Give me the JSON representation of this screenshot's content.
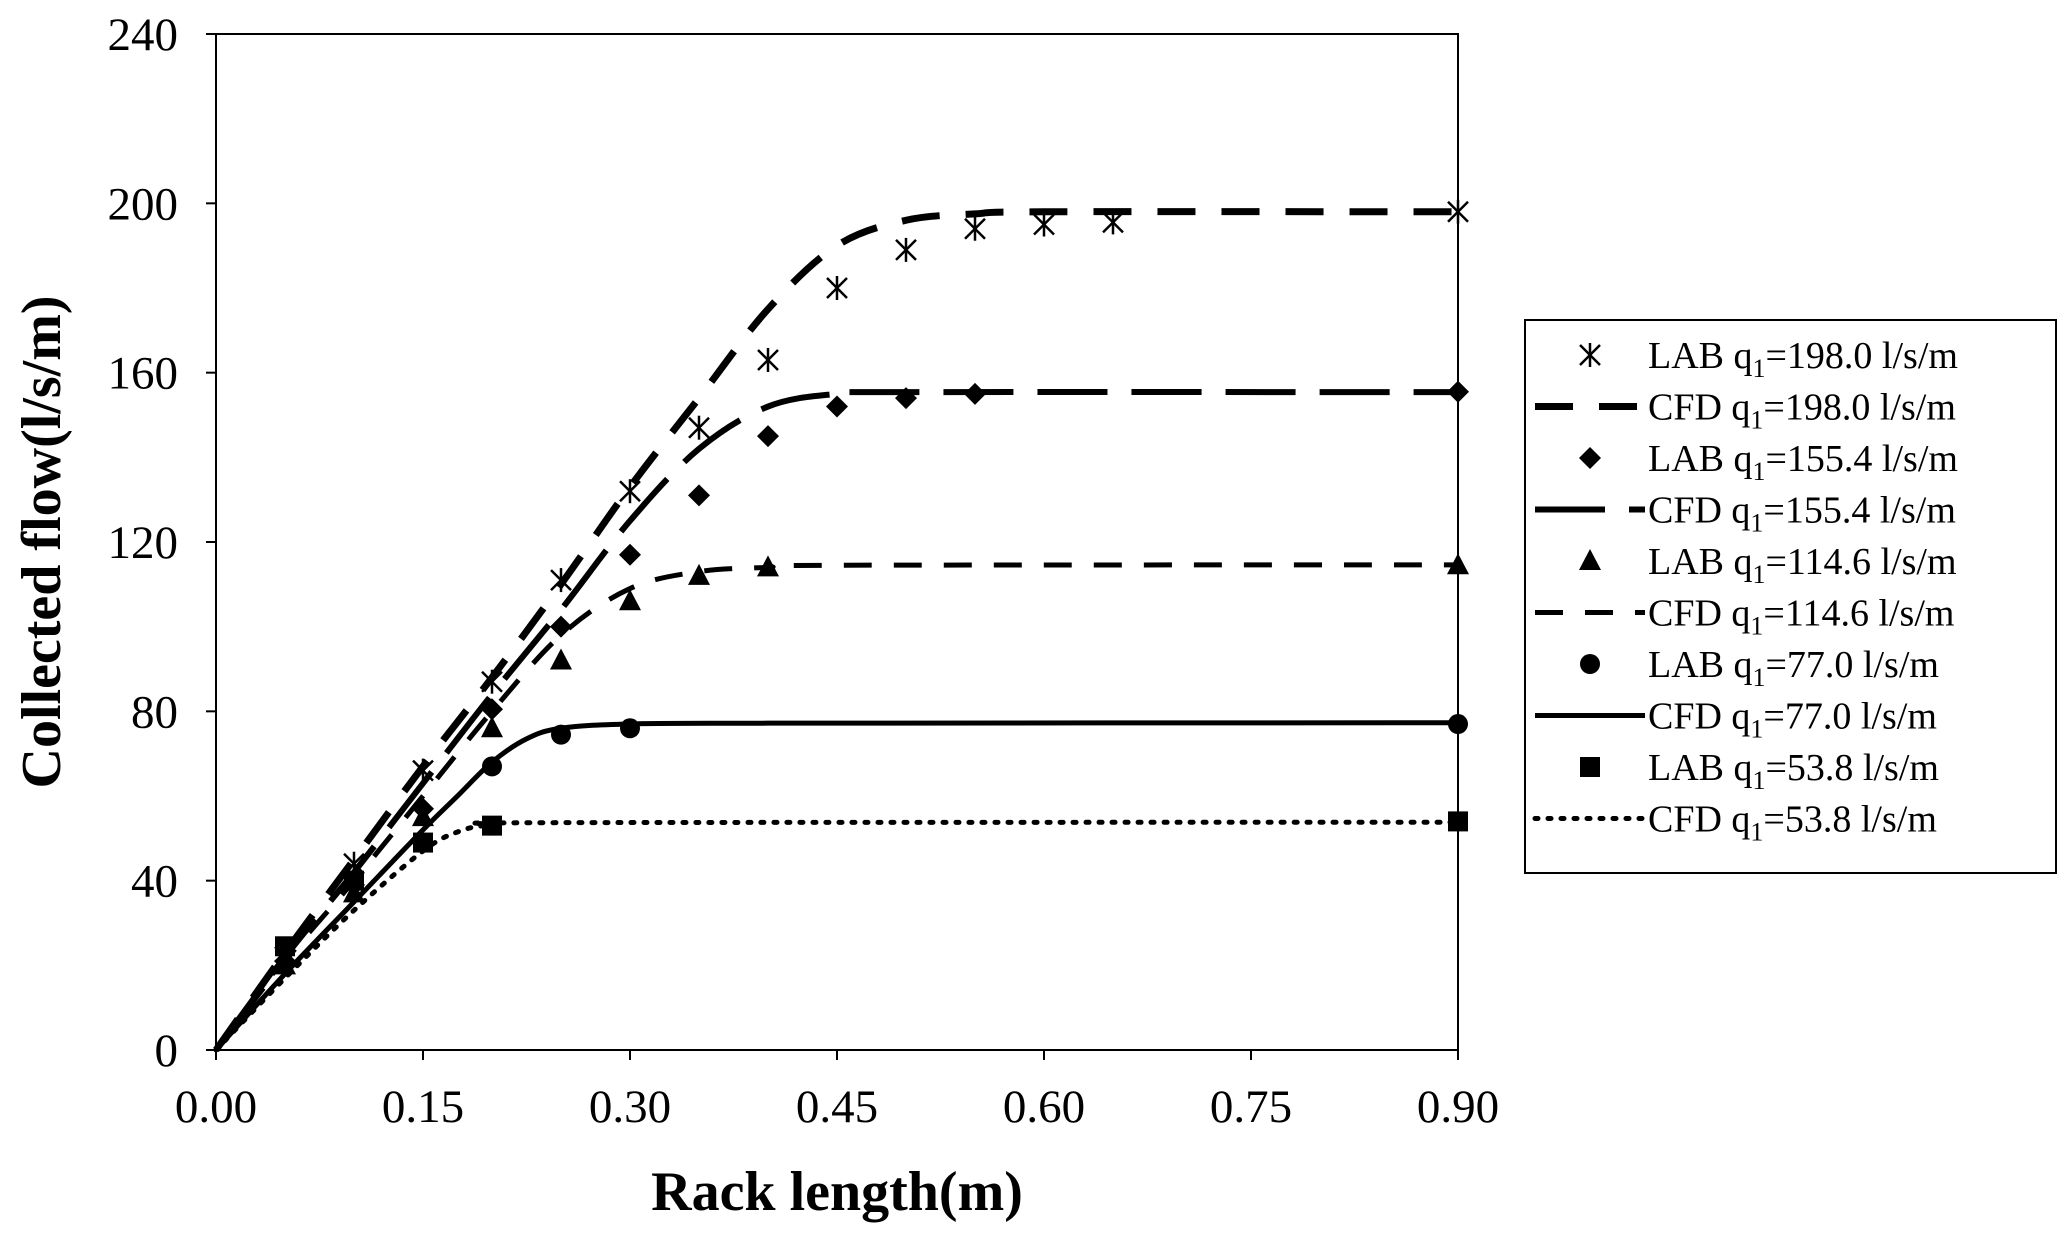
{
  "chart_data": {
    "type": "line",
    "title": "",
    "xlabel": "Rack length(m)",
    "ylabel": "Collected flow(l/s/m)",
    "xlim": [
      0,
      0.9
    ],
    "ylim": [
      0,
      240
    ],
    "x_axis_ticks": [
      0,
      0.15,
      0.3,
      0.45,
      0.6,
      0.75,
      0.9
    ],
    "x_tick_labels": [
      "0.00",
      "0.15",
      "0.30",
      "0.45",
      "0.60",
      "0.75",
      "0.90"
    ],
    "y_axis_ticks": [
      0,
      40,
      80,
      120,
      160,
      200,
      240
    ],
    "y_tick_labels": [
      "0",
      "40",
      "80",
      "120",
      "160",
      "200",
      "240"
    ],
    "grid": false,
    "legend_position": "right",
    "series": [
      {
        "name": "LAB q1=198.0 l/s/m",
        "legend": {
          "prefix": "LAB q",
          "sub": "1",
          "suffix": "=198.0 l/s/m"
        },
        "kind": "markers",
        "marker": "asterisk",
        "points": [
          [
            0.05,
            22
          ],
          [
            0.1,
            44
          ],
          [
            0.15,
            66
          ],
          [
            0.2,
            87
          ],
          [
            0.25,
            111
          ],
          [
            0.3,
            132
          ],
          [
            0.35,
            147
          ],
          [
            0.4,
            163
          ],
          [
            0.45,
            180
          ],
          [
            0.5,
            189
          ],
          [
            0.55,
            194
          ],
          [
            0.6,
            195
          ],
          [
            0.65,
            195.5
          ],
          [
            0.9,
            198
          ]
        ]
      },
      {
        "name": "CFD q1=198.0 l/s/m",
        "legend": {
          "prefix": "CFD q",
          "sub": "1",
          "suffix": "=198.0 l/s/m"
        },
        "kind": "line",
        "dash": "38,26",
        "stroke_width": 7,
        "points": [
          [
            0,
            0
          ],
          [
            0.05,
            23
          ],
          [
            0.1,
            45
          ],
          [
            0.15,
            67
          ],
          [
            0.2,
            88
          ],
          [
            0.25,
            110
          ],
          [
            0.3,
            133
          ],
          [
            0.35,
            154
          ],
          [
            0.4,
            175
          ],
          [
            0.45,
            190
          ],
          [
            0.5,
            196
          ],
          [
            0.55,
            197.5
          ],
          [
            0.6,
            198
          ],
          [
            0.9,
            198
          ]
        ]
      },
      {
        "name": "LAB q1=155.4 l/s/m",
        "legend": {
          "prefix": "LAB q",
          "sub": "1",
          "suffix": "=155.4 l/s/m"
        },
        "kind": "markers",
        "marker": "diamond",
        "points": [
          [
            0.05,
            21
          ],
          [
            0.1,
            39
          ],
          [
            0.15,
            57
          ],
          [
            0.2,
            80.5
          ],
          [
            0.25,
            100
          ],
          [
            0.3,
            117
          ],
          [
            0.35,
            131
          ],
          [
            0.4,
            145
          ],
          [
            0.45,
            152
          ],
          [
            0.5,
            154
          ],
          [
            0.55,
            155
          ],
          [
            0.9,
            155.5
          ]
        ]
      },
      {
        "name": "CFD q1=155.4 l/s/m",
        "legend": {
          "prefix": "CFD q",
          "sub": "1",
          "suffix": "=155.4 l/s/m"
        },
        "kind": "line",
        "dash": "70,24",
        "stroke_width": 6,
        "points": [
          [
            0,
            0
          ],
          [
            0.05,
            22
          ],
          [
            0.1,
            42
          ],
          [
            0.15,
            63
          ],
          [
            0.2,
            84
          ],
          [
            0.25,
            104
          ],
          [
            0.3,
            125
          ],
          [
            0.35,
            142
          ],
          [
            0.4,
            152
          ],
          [
            0.45,
            155
          ],
          [
            0.5,
            155.4
          ],
          [
            0.9,
            155.4
          ]
        ]
      },
      {
        "name": "LAB q1=114.6 l/s/m",
        "legend": {
          "prefix": "LAB q",
          "sub": "1",
          "suffix": "=114.6 l/s/m"
        },
        "kind": "markers",
        "marker": "triangle",
        "points": [
          [
            0.05,
            20
          ],
          [
            0.1,
            37
          ],
          [
            0.15,
            55
          ],
          [
            0.2,
            76
          ],
          [
            0.25,
            92
          ],
          [
            0.3,
            106
          ],
          [
            0.35,
            112
          ],
          [
            0.4,
            114
          ],
          [
            0.9,
            114.5
          ]
        ]
      },
      {
        "name": "CFD q1=114.6 l/s/m",
        "legend": {
          "prefix": "CFD q",
          "sub": "1",
          "suffix": "=114.6 l/s/m"
        },
        "kind": "line",
        "dash": "28,22",
        "stroke_width": 5,
        "points": [
          [
            0,
            0
          ],
          [
            0.05,
            21
          ],
          [
            0.1,
            40
          ],
          [
            0.15,
            60
          ],
          [
            0.2,
            80
          ],
          [
            0.25,
            98
          ],
          [
            0.3,
            109
          ],
          [
            0.35,
            113
          ],
          [
            0.4,
            114
          ],
          [
            0.45,
            114.5
          ],
          [
            0.9,
            114.6
          ]
        ]
      },
      {
        "name": "LAB q1=77.0 l/s/m",
        "legend": {
          "prefix": "LAB q",
          "sub": "1",
          "suffix": "=77.0 l/s/m"
        },
        "kind": "markers",
        "marker": "circle",
        "points": [
          [
            0.2,
            67
          ],
          [
            0.25,
            74.5
          ],
          [
            0.3,
            76
          ],
          [
            0.9,
            77
          ]
        ]
      },
      {
        "name": "CFD q1=77.0 l/s/m",
        "legend": {
          "prefix": "CFD q",
          "sub": "1",
          "suffix": "=77.0 l/s/m"
        },
        "kind": "line",
        "dash": "",
        "stroke_width": 5,
        "points": [
          [
            0,
            0
          ],
          [
            0.05,
            18
          ],
          [
            0.1,
            35
          ],
          [
            0.15,
            52
          ],
          [
            0.175,
            60
          ],
          [
            0.2,
            68
          ],
          [
            0.225,
            73.5
          ],
          [
            0.25,
            76
          ],
          [
            0.3,
            77
          ],
          [
            0.4,
            77.2
          ],
          [
            0.9,
            77.3
          ]
        ]
      },
      {
        "name": "LAB q1=53.8 l/s/m",
        "legend": {
          "prefix": "LAB q",
          "sub": "1",
          "suffix": "=53.8 l/s/m"
        },
        "kind": "markers",
        "marker": "square",
        "points": [
          [
            0.05,
            24.5
          ],
          [
            0.1,
            40
          ],
          [
            0.15,
            49
          ],
          [
            0.2,
            53
          ],
          [
            0.9,
            54
          ]
        ]
      },
      {
        "name": "CFD q1=53.8 l/s/m",
        "legend": {
          "prefix": "CFD q",
          "sub": "1",
          "suffix": "=53.8 l/s/m"
        },
        "kind": "line",
        "dash": "3,10",
        "stroke_width": 5,
        "points": [
          [
            0,
            0
          ],
          [
            0.05,
            17
          ],
          [
            0.1,
            33
          ],
          [
            0.15,
            47
          ],
          [
            0.175,
            51.5
          ],
          [
            0.2,
            53.2
          ],
          [
            0.25,
            53.7
          ],
          [
            0.9,
            53.8
          ]
        ]
      }
    ]
  }
}
